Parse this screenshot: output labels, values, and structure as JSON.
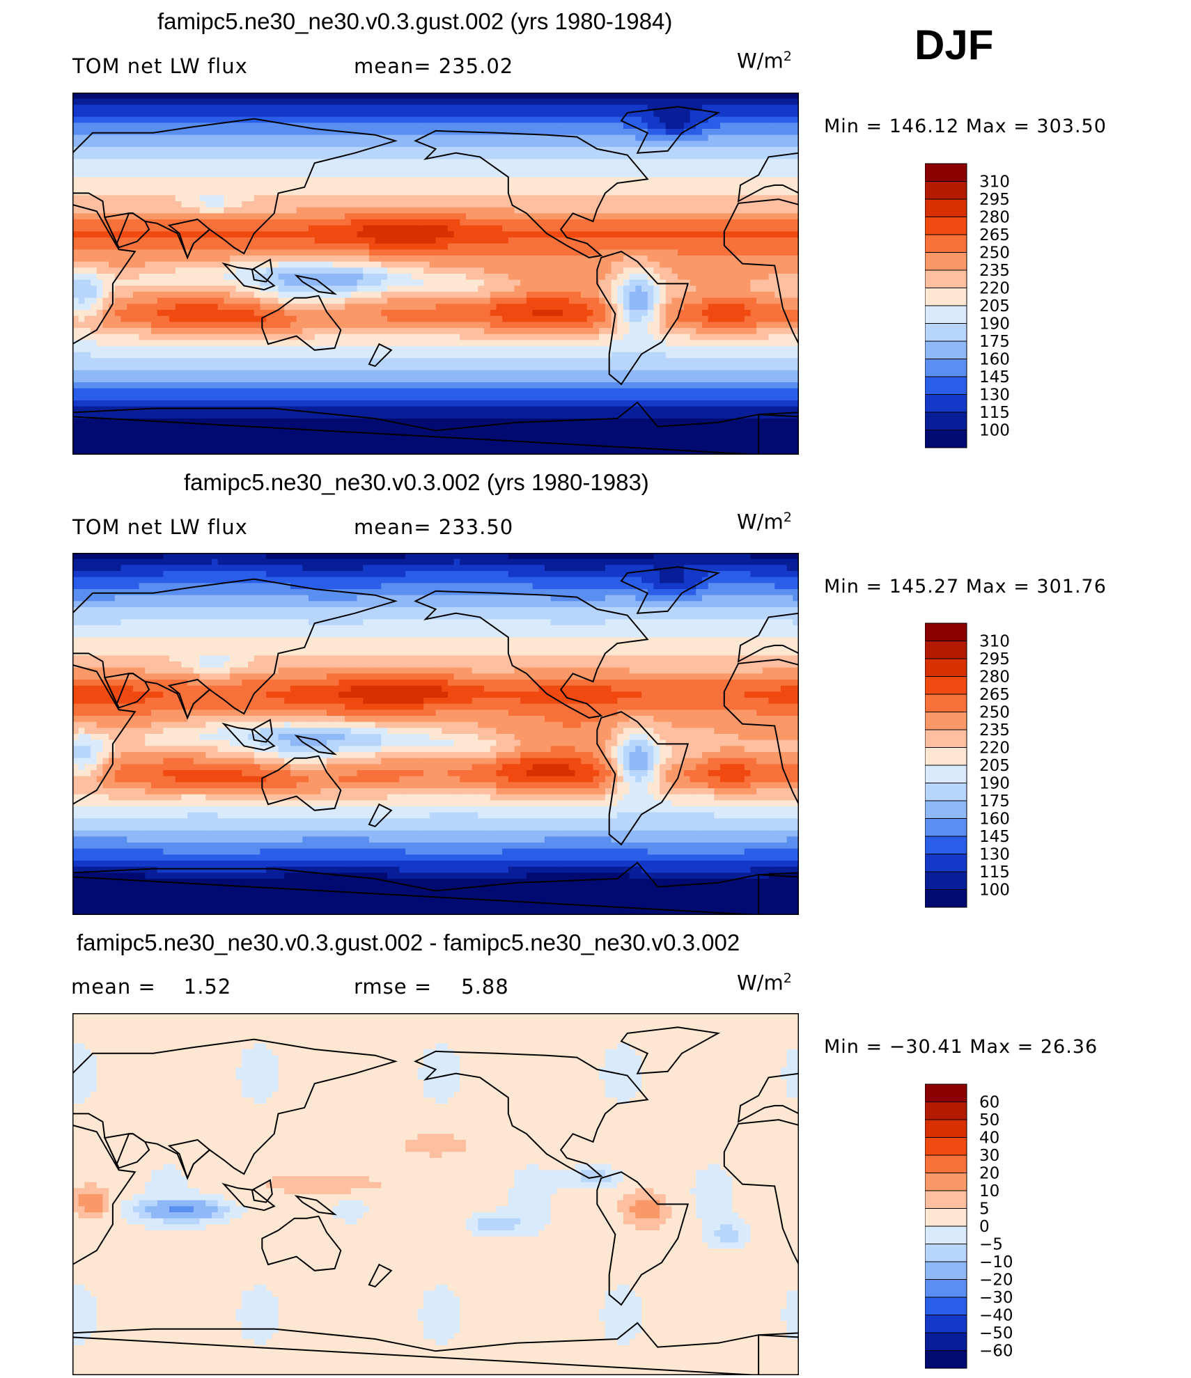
{
  "season": "DJF",
  "panels": [
    {
      "title": "famipc5.ne30_ne30.v0.3.gust.002 (yrs 1980-1984)",
      "left_label": "TOM net LW flux",
      "center_label": "mean= 235.02",
      "units": "W/m",
      "units_sup": "2",
      "min_label": "Min",
      "min_value": "146.12",
      "max_label": "Max",
      "max_value": "303.50"
    },
    {
      "title": "famipc5.ne30_ne30.v0.3.002 (yrs 1980-1983)",
      "left_label": "TOM net LW flux",
      "center_label": "mean= 233.50",
      "units": "W/m",
      "units_sup": "2",
      "min_label": "Min",
      "min_value": "145.27",
      "max_label": "Max",
      "max_value": "301.76"
    },
    {
      "title": "famipc5.ne30_ne30.v0.3.gust.002 - famipc5.ne30_ne30.v0.3.002",
      "left_label": "mean =",
      "left_value": "1.52",
      "center_label": "rmse =",
      "center_value": "5.88",
      "units": "W/m",
      "units_sup": "2",
      "min_label": "Min",
      "min_value": "−30.41",
      "max_label": "Max",
      "max_value": "26.36"
    }
  ],
  "chart_data": [
    {
      "type": "heatmap",
      "title": "famipc5.ne30_ne30.v0.3.gust.002 (yrs 1980-1984)",
      "variable": "TOM net LW flux",
      "units": "W/m2",
      "mean": 235.02,
      "min": 146.12,
      "max": 303.5,
      "colorbar_levels": [
        "310",
        "295",
        "280",
        "265",
        "250",
        "235",
        "220",
        "205",
        "190",
        "175",
        "160",
        "145",
        "130",
        "115",
        "100"
      ],
      "colorbar_colors": [
        "#8c0000",
        "#b31a00",
        "#d93000",
        "#f04a10",
        "#f8703a",
        "#fa9868",
        "#fdbfa0",
        "#fde6d2",
        "#d8eafc",
        "#b8d6fc",
        "#8fb8f8",
        "#5a8ef0",
        "#2a5ee8",
        "#1438c8",
        "#081e98",
        "#000a70"
      ]
    },
    {
      "type": "heatmap",
      "title": "famipc5.ne30_ne30.v0.3.002 (yrs 1980-1983)",
      "variable": "TOM net LW flux",
      "units": "W/m2",
      "mean": 233.5,
      "min": 145.27,
      "max": 301.76,
      "colorbar_levels": [
        "310",
        "295",
        "280",
        "265",
        "250",
        "235",
        "220",
        "205",
        "190",
        "175",
        "160",
        "145",
        "130",
        "115",
        "100"
      ],
      "colorbar_colors": [
        "#8c0000",
        "#b31a00",
        "#d93000",
        "#f04a10",
        "#f8703a",
        "#fa9868",
        "#fdbfa0",
        "#fde6d2",
        "#d8eafc",
        "#b8d6fc",
        "#8fb8f8",
        "#5a8ef0",
        "#2a5ee8",
        "#1438c8",
        "#081e98",
        "#000a70"
      ]
    },
    {
      "type": "heatmap",
      "title": "famipc5.ne30_ne30.v0.3.gust.002 - famipc5.ne30_ne30.v0.3.002",
      "units": "W/m2",
      "mean": 1.52,
      "rmse": 5.88,
      "min": -30.41,
      "max": 26.36,
      "colorbar_levels": [
        "60",
        "50",
        "40",
        "30",
        "20",
        "10",
        "5",
        "0",
        "−5",
        "−10",
        "−20",
        "−30",
        "−40",
        "−50",
        "−60"
      ],
      "colorbar_colors": [
        "#8c0000",
        "#b31a00",
        "#d93000",
        "#f04a10",
        "#f8703a",
        "#fa9868",
        "#fdbfa0",
        "#fde6d2",
        "#d8eafc",
        "#b8d6fc",
        "#8fb8f8",
        "#5a8ef0",
        "#2a5ee8",
        "#1438c8",
        "#081e98",
        "#000a70"
      ]
    }
  ]
}
